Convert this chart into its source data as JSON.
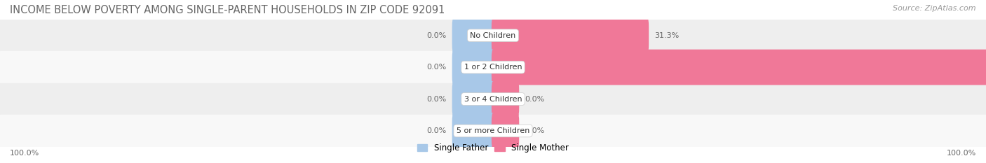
{
  "title": "INCOME BELOW POVERTY AMONG SINGLE-PARENT HOUSEHOLDS IN ZIP CODE 92091",
  "source": "Source: ZipAtlas.com",
  "categories": [
    "No Children",
    "1 or 2 Children",
    "3 or 4 Children",
    "5 or more Children"
  ],
  "single_father": [
    0.0,
    0.0,
    0.0,
    0.0
  ],
  "single_mother": [
    31.3,
    100.0,
    0.0,
    0.0
  ],
  "father_color": "#a8c8e8",
  "mother_color": "#f07898",
  "row_bg_even": "#eeeeee",
  "row_bg_odd": "#f8f8f8",
  "max_value": 100.0,
  "x_left_label": "100.0%",
  "x_right_label": "100.0%",
  "title_fontsize": 10.5,
  "source_fontsize": 8,
  "label_fontsize": 8,
  "legend_fontsize": 8.5,
  "bar_value_fontsize": 8,
  "cat_label_fontsize": 8,
  "background_color": "#ffffff",
  "father_stub_pct": 8,
  "mother_stub_pct": 5
}
